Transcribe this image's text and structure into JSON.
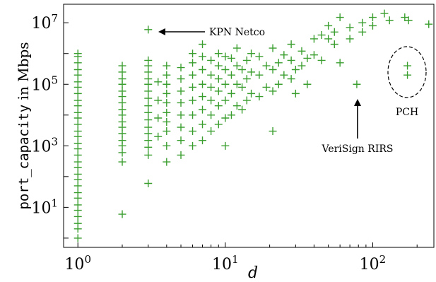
{
  "chart_data": {
    "type": "scatter",
    "xlabel": "d",
    "ylabel": {
      "code": "port_capacity",
      "text": " in Mbps"
    },
    "x_scale": "log",
    "y_scale": "log",
    "xlim": [
      0.8,
      260
    ],
    "ylim": [
      0.5,
      40000000
    ],
    "x_ticks": [
      {
        "base": "10",
        "exp": "0",
        "value": 1
      },
      {
        "base": "10",
        "exp": "1",
        "value": 10
      },
      {
        "base": "10",
        "exp": "2",
        "value": 100
      }
    ],
    "y_ticks": [
      {
        "base": "10",
        "exp": "1",
        "value": 10
      },
      {
        "base": "10",
        "exp": "3",
        "value": 1000
      },
      {
        "base": "10",
        "exp": "5",
        "value": 100000
      },
      {
        "base": "10",
        "exp": "7",
        "value": 10000000
      }
    ],
    "marker_color": "#3a9e2f",
    "marker": "plus",
    "grid": false,
    "annotations": [
      {
        "text": "KPN Netco",
        "target": [
          3.1,
          6000000
        ],
        "arrow": "left"
      },
      {
        "text": "VeriSign RIRS",
        "target": [
          78,
          100000
        ],
        "arrow": "up"
      },
      {
        "text": "PCH",
        "target": [
          172,
          100000
        ],
        "shape": "dashed-ellipse"
      }
    ],
    "series": [
      {
        "points": [
          [
            1,
            1
          ],
          [
            1,
            2
          ],
          [
            1,
            3
          ],
          [
            1,
            5
          ],
          [
            1,
            8
          ],
          [
            1,
            12
          ],
          [
            1,
            20
          ],
          [
            1,
            30
          ],
          [
            1,
            50
          ],
          [
            1,
            80
          ],
          [
            1,
            120
          ],
          [
            1,
            200
          ],
          [
            1,
            300
          ],
          [
            1,
            500
          ],
          [
            1,
            800
          ],
          [
            1,
            1200
          ],
          [
            1,
            2000
          ],
          [
            1,
            3000
          ],
          [
            1,
            5000
          ],
          [
            1,
            8000
          ],
          [
            1,
            12000
          ],
          [
            1,
            20000
          ],
          [
            1,
            30000
          ],
          [
            1,
            50000
          ],
          [
            1,
            80000
          ],
          [
            1,
            120000
          ],
          [
            1,
            200000
          ],
          [
            1,
            300000
          ],
          [
            1,
            500000
          ],
          [
            1,
            800000
          ],
          [
            1,
            1000000
          ],
          [
            2,
            6
          ],
          [
            2,
            300
          ],
          [
            2,
            600
          ],
          [
            2,
            1000
          ],
          [
            2,
            1500
          ],
          [
            2,
            2500
          ],
          [
            2,
            4000
          ],
          [
            2,
            6000
          ],
          [
            2,
            10000
          ],
          [
            2,
            15000
          ],
          [
            2,
            25000
          ],
          [
            2,
            40000
          ],
          [
            2,
            60000
          ],
          [
            2,
            100000
          ],
          [
            2,
            150000
          ],
          [
            2,
            250000
          ],
          [
            2,
            400000
          ],
          [
            3,
            6000000
          ],
          [
            3,
            60
          ],
          [
            3,
            500
          ],
          [
            3,
            900
          ],
          [
            3,
            1500
          ],
          [
            3,
            2500
          ],
          [
            3,
            4000
          ],
          [
            3,
            7000
          ],
          [
            3,
            12000
          ],
          [
            3,
            20000
          ],
          [
            3,
            35000
          ],
          [
            3,
            60000
          ],
          [
            3,
            100000
          ],
          [
            3,
            150000
          ],
          [
            3,
            250000
          ],
          [
            3,
            400000
          ],
          [
            3,
            600000
          ],
          [
            3.5,
            2000
          ],
          [
            3.5,
            8000
          ],
          [
            3.5,
            30000
          ],
          [
            3.5,
            120000
          ],
          [
            4,
            300
          ],
          [
            4,
            1000
          ],
          [
            4,
            3000
          ],
          [
            4,
            6000
          ],
          [
            4,
            12000
          ],
          [
            4,
            25000
          ],
          [
            4,
            50000
          ],
          [
            4,
            100000
          ],
          [
            4,
            200000
          ],
          [
            4,
            400000
          ],
          [
            5,
            500
          ],
          [
            5,
            1500
          ],
          [
            5,
            4000
          ],
          [
            5,
            10000
          ],
          [
            5,
            25000
          ],
          [
            5,
            60000
          ],
          [
            5,
            150000
          ],
          [
            5,
            350000
          ],
          [
            6,
            1000
          ],
          [
            6,
            3000
          ],
          [
            6,
            10000
          ],
          [
            6,
            30000
          ],
          [
            6,
            80000
          ],
          [
            6,
            200000
          ],
          [
            6,
            500000
          ],
          [
            6,
            1000000
          ],
          [
            7,
            1500
          ],
          [
            7,
            5000
          ],
          [
            7,
            15000
          ],
          [
            7,
            40000
          ],
          [
            7,
            100000
          ],
          [
            7,
            300000
          ],
          [
            7,
            800000
          ],
          [
            7,
            2000000
          ],
          [
            8,
            3000
          ],
          [
            8,
            10000
          ],
          [
            8,
            30000
          ],
          [
            8,
            80000
          ],
          [
            8,
            200000
          ],
          [
            8,
            600000
          ],
          [
            9,
            5000
          ],
          [
            9,
            20000
          ],
          [
            9,
            60000
          ],
          [
            9,
            150000
          ],
          [
            9,
            400000
          ],
          [
            9,
            1000000
          ],
          [
            10,
            1000
          ],
          [
            10,
            8000
          ],
          [
            10,
            30000
          ],
          [
            10,
            100000
          ],
          [
            10,
            300000
          ],
          [
            10,
            800000
          ],
          [
            11,
            10000
          ],
          [
            11,
            50000
          ],
          [
            11,
            200000
          ],
          [
            11,
            700000
          ],
          [
            12,
            20000
          ],
          [
            12,
            100000
          ],
          [
            12,
            400000
          ],
          [
            12,
            1500000
          ],
          [
            13,
            15000
          ],
          [
            13,
            80000
          ],
          [
            13,
            300000
          ],
          [
            14,
            30000
          ],
          [
            14,
            150000
          ],
          [
            14,
            600000
          ],
          [
            15,
            50000
          ],
          [
            15,
            250000
          ],
          [
            15,
            1000000
          ],
          [
            17,
            40000
          ],
          [
            17,
            200000
          ],
          [
            17,
            800000
          ],
          [
            19,
            80000
          ],
          [
            19,
            400000
          ],
          [
            21,
            3000
          ],
          [
            21,
            60000
          ],
          [
            21,
            300000
          ],
          [
            21,
            1500000
          ],
          [
            23,
            100000
          ],
          [
            23,
            500000
          ],
          [
            25,
            200000
          ],
          [
            25,
            900000
          ],
          [
            28,
            150000
          ],
          [
            28,
            600000
          ],
          [
            28,
            2000000
          ],
          [
            30,
            50000
          ],
          [
            30,
            300000
          ],
          [
            33,
            400000
          ],
          [
            33,
            1200000
          ],
          [
            36,
            100000
          ],
          [
            36,
            700000
          ],
          [
            40,
            900000
          ],
          [
            40,
            3000000
          ],
          [
            45,
            600000
          ],
          [
            45,
            4000000
          ],
          [
            50,
            3000000
          ],
          [
            50,
            8000000
          ],
          [
            55,
            2000000
          ],
          [
            55,
            5000000
          ],
          [
            60,
            15000000
          ],
          [
            60,
            500000
          ],
          [
            70,
            3000000
          ],
          [
            70,
            7000000
          ],
          [
            78,
            100000
          ],
          [
            85,
            5000000
          ],
          [
            85,
            10000000
          ],
          [
            100,
            8000000
          ],
          [
            100,
            15000000
          ],
          [
            120,
            20000000
          ],
          [
            130,
            12000000
          ],
          [
            165,
            15000000
          ],
          [
            175,
            12000000
          ],
          [
            172,
            400000
          ],
          [
            172,
            200000
          ],
          [
            240,
            9000000
          ]
        ]
      }
    ]
  }
}
